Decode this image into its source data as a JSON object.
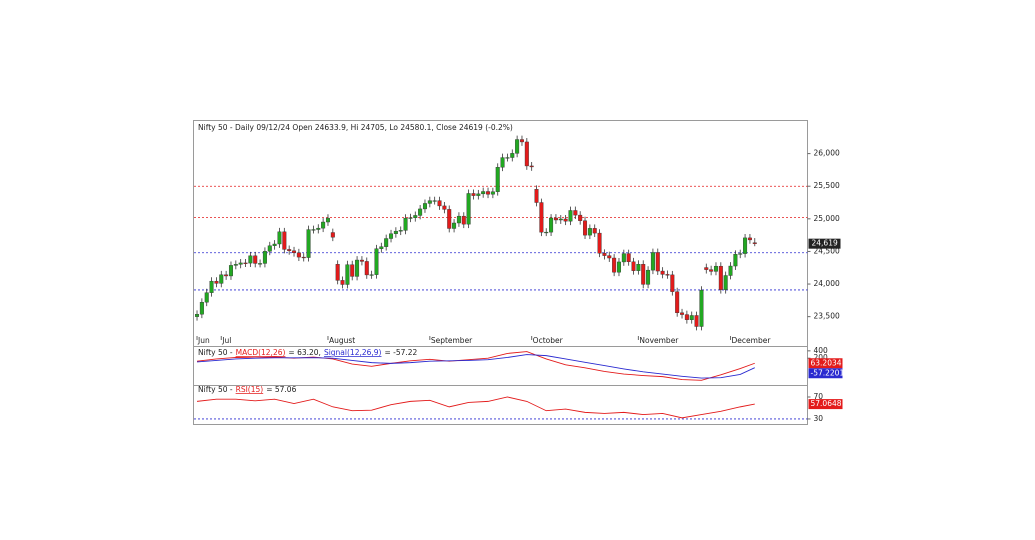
{
  "chart_data": [
    {
      "type": "candlestick",
      "title": "Nifty 50 - Daily 09/12/24 Open 24633.9, Hi 24705, Lo 24580.1, Close 24619 (-0.2%)",
      "categories": [
        "Jun",
        null,
        null,
        null,
        null,
        "Jul",
        null,
        null,
        null,
        null,
        null,
        null,
        null,
        null,
        null,
        null,
        null,
        null,
        null,
        null,
        null,
        null,
        null,
        null,
        null,
        null,
        null,
        "August",
        null,
        null,
        null,
        null,
        null,
        null,
        null,
        null,
        null,
        null,
        null,
        null,
        null,
        null,
        null,
        null,
        null,
        null,
        null,
        null,
        "September",
        null,
        null,
        null,
        null,
        null,
        null,
        null,
        null,
        null,
        null,
        null,
        null,
        null,
        null,
        null,
        null,
        null,
        null,
        null,
        null,
        "October",
        null,
        null,
        null,
        null,
        null,
        null,
        null,
        null,
        null,
        null,
        null,
        null,
        null,
        null,
        null,
        null,
        null,
        null,
        null,
        null,
        null,
        "November",
        null,
        null,
        null,
        null,
        null,
        null,
        null,
        null,
        null,
        null,
        null,
        null,
        null,
        null,
        null,
        null,
        null,
        null,
        "December",
        null,
        null,
        null,
        null,
        null
      ],
      "open": [
        23500,
        23537,
        23721,
        23868,
        24044,
        24010,
        24142,
        24124,
        24286,
        24302,
        24324,
        24321,
        24433,
        24316,
        24316,
        24502,
        24587,
        24614,
        24801,
        24531,
        24510,
        24480,
        24413,
        24406,
        24835,
        24836,
        24857,
        24951,
        24790,
        24303,
        24056,
        23993,
        24297,
        24117,
        24368,
        24347,
        24140,
        24144,
        24541,
        24573,
        24698,
        24771,
        24811,
        24823,
        25010,
        25017,
        25052,
        25152,
        25236,
        25279,
        25279,
        25198,
        25145,
        24852,
        24936,
        25041,
        24918,
        25389,
        25356,
        25383,
        25419,
        25377,
        25416,
        25791,
        25939,
        25940,
        26004,
        26216,
        26179,
        25811,
        25453,
        25250,
        24795,
        24796,
        25013,
        24982,
        24998,
        24964,
        25128,
        25057,
        24971,
        24750,
        24854,
        24781,
        24472,
        24436,
        24399,
        24181,
        24339,
        24467,
        24341,
        24205,
        24304,
        23995,
        24213,
        24484,
        24199,
        24148,
        24141,
        23883,
        23559,
        23532,
        23453,
        23518,
        23349,
        24253,
        24221,
        24194,
        24274,
        23914,
        24131,
        24276,
        24457,
        24467,
        24708,
        24633.9
      ],
      "high": [
        23597,
        23781,
        23928,
        24104,
        24104,
        24202,
        24202,
        24346,
        24362,
        24384,
        24384,
        24493,
        24493,
        24376,
        24562,
        24647,
        24674,
        24861,
        24861,
        24591,
        24570,
        24540,
        24473,
        24895,
        24896,
        24917,
        25011,
        25071,
        24850,
        24363,
        24116,
        24357,
        24357,
        24428,
        24428,
        24407,
        24204,
        24601,
        24633,
        24758,
        24831,
        24871,
        24883,
        25070,
        25077,
        25112,
        25212,
        25296,
        25339,
        25339,
        25339,
        25258,
        25205,
        24996,
        25101,
        25101,
        25449,
        25449,
        25443,
        25479,
        25479,
        25476,
        25851,
        25999,
        26000,
        26064,
        26276,
        26276,
        26239,
        25871,
        25513,
        25310,
        24856,
        25073,
        25073,
        25058,
        25058,
        25188,
        25188,
        25117,
        25031,
        24914,
        24914,
        24841,
        24532,
        24496,
        24459,
        24399,
        24527,
        24527,
        24401,
        24364,
        24364,
        24273,
        24544,
        24544,
        24259,
        24208,
        24201,
        23943,
        23619,
        23592,
        23578,
        23578,
        23967,
        24313,
        24281,
        24334,
        24334,
        24191,
        24336,
        24517,
        24527,
        24768,
        24768,
        24705
      ],
      "low": [
        23440,
        23477,
        23661,
        23808,
        23950,
        23950,
        24064,
        24064,
        24226,
        24242,
        24261,
        24261,
        24256,
        24256,
        24256,
        24442,
        24527,
        24554,
        24471,
        24450,
        24420,
        24353,
        24346,
        24346,
        24775,
        24776,
        24797,
        24891,
        24658,
        23996,
        23933,
        23933,
        24057,
        24057,
        24287,
        24080,
        24080,
        24084,
        24481,
        24513,
        24638,
        24711,
        24751,
        24763,
        24950,
        24957,
        24992,
        25092,
        25176,
        25219,
        25138,
        25085,
        24792,
        24792,
        24876,
        24858,
        24858,
        25296,
        25296,
        25323,
        25317,
        25317,
        25356,
        25731,
        25879,
        25880,
        25944,
        26119,
        25751,
        25736,
        25190,
        24735,
        24735,
        24736,
        24922,
        24922,
        24904,
        24904,
        24997,
        24911,
        24690,
        24690,
        24721,
        24412,
        24376,
        24339,
        24121,
        24121,
        24279,
        24281,
        24145,
        24145,
        23935,
        23935,
        24153,
        24139,
        24088,
        24081,
        23823,
        23499,
        23472,
        23393,
        23393,
        23289,
        23289,
        24161,
        24134,
        24134,
        23854,
        23854,
        24071,
        24216,
        24397,
        24407,
        24617,
        24580.1
      ],
      "close": [
        23537,
        23721,
        23868,
        24044,
        24010,
        24142,
        24124,
        24286,
        24302,
        24324,
        24321,
        24433,
        24316,
        24316,
        24502,
        24587,
        24614,
        24801,
        24531,
        24510,
        24480,
        24413,
        24406,
        24835,
        24836,
        24857,
        24951,
        25011,
        24718,
        24056,
        23993,
        24297,
        24117,
        24368,
        24347,
        24140,
        24144,
        24541,
        24573,
        24698,
        24771,
        24811,
        24823,
        25010,
        25017,
        25052,
        25152,
        25236,
        25279,
        25279,
        25198,
        25145,
        24852,
        24936,
        25041,
        24918,
        25389,
        25356,
        25383,
        25419,
        25377,
        25416,
        25791,
        25939,
        25940,
        26004,
        26216,
        26179,
        25811,
        25796,
        25250,
        24795,
        24796,
        25013,
        24982,
        24998,
        24964,
        25128,
        25057,
        24971,
        24750,
        24854,
        24781,
        24472,
        24436,
        24399,
        24181,
        24339,
        24467,
        24341,
        24205,
        24304,
        23995,
        24213,
        24484,
        24199,
        24148,
        24141,
        23883,
        23559,
        23532,
        23453,
        23518,
        23349,
        23907,
        24221,
        24194,
        24274,
        23914,
        24131,
        24276,
        24457,
        24467,
        24708,
        24677,
        24619
      ],
      "up_color": "#22a822",
      "down_color": "#e31b1b",
      "ylim": [
        23050,
        26500
      ],
      "yticks": [
        {
          "value": 23500,
          "label": "23,500"
        },
        {
          "value": 24000,
          "label": "24,000"
        },
        {
          "value": 24500,
          "label": "24,500"
        },
        {
          "value": 25000,
          "label": "25,000"
        },
        {
          "value": 25500,
          "label": "25,500"
        },
        {
          "value": 26000,
          "label": "26,000"
        }
      ],
      "hlines": [
        {
          "value": 25500,
          "color": "#e31b1b"
        },
        {
          "value": 25020,
          "color": "#e31b1b"
        },
        {
          "value": 24480,
          "color": "#2a2ad0"
        },
        {
          "value": 23910,
          "color": "#2a2ad0"
        }
      ],
      "last_label": "24,619"
    },
    {
      "type": "line",
      "prefix": "Nifty 50 -",
      "x": [
        0,
        4,
        8,
        12,
        16,
        20,
        24,
        28,
        32,
        36,
        40,
        44,
        48,
        52,
        56,
        60,
        64,
        68,
        72,
        76,
        80,
        84,
        88,
        92,
        96,
        100,
        104,
        108,
        112,
        115
      ],
      "xlim": [
        -0.5,
        115.5
      ],
      "ylim": [
        -500,
        450
      ],
      "yticks": [
        400,
        200
      ],
      "series": [
        {
          "name": "MACD(12,26)",
          "readout": "= 63.20,",
          "color": "#e31b1b",
          "value_label": "63.2034",
          "values": [
            120,
            180,
            220,
            210,
            230,
            200,
            230,
            180,
            40,
            -20,
            60,
            130,
            170,
            120,
            160,
            200,
            330,
            380,
            180,
            20,
            -60,
            -160,
            -230,
            -270,
            -300,
            -380,
            -400,
            -250,
            -80,
            63.2
          ]
        },
        {
          "name": "Signal(12,26,9)",
          "readout": "= -57.22",
          "color": "#2a2ad0",
          "value_label": "-57.2201",
          "values": [
            100,
            140,
            180,
            200,
            210,
            210,
            215,
            200,
            140,
            80,
            60,
            80,
            120,
            130,
            140,
            160,
            220,
            300,
            270,
            180,
            90,
            0,
            -90,
            -170,
            -230,
            -290,
            -340,
            -330,
            -240,
            -57.22
          ]
        }
      ]
    },
    {
      "type": "line",
      "prefix": "Nifty 50 -",
      "x": [
        0,
        4,
        8,
        12,
        16,
        20,
        24,
        28,
        32,
        36,
        40,
        44,
        48,
        52,
        56,
        60,
        64,
        68,
        72,
        76,
        80,
        84,
        88,
        92,
        96,
        100,
        104,
        108,
        112,
        115
      ],
      "xlim": [
        -0.5,
        115.5
      ],
      "ylim": [
        19,
        90
      ],
      "yticks": [
        70,
        30
      ],
      "hlines": [
        {
          "value": 30,
          "color": "#2a2ad0"
        }
      ],
      "series": [
        {
          "name": "RSI(15)",
          "readout": "= 57.06",
          "color": "#e31b1b",
          "value_label": "57.0648",
          "values": [
            62,
            66,
            66,
            63,
            66,
            58,
            66,
            52,
            45,
            46,
            56,
            62,
            64,
            52,
            60,
            62,
            70,
            62,
            45,
            48,
            42,
            40,
            42,
            38,
            40,
            32,
            38,
            44,
            52,
            57.06
          ]
        }
      ]
    }
  ]
}
